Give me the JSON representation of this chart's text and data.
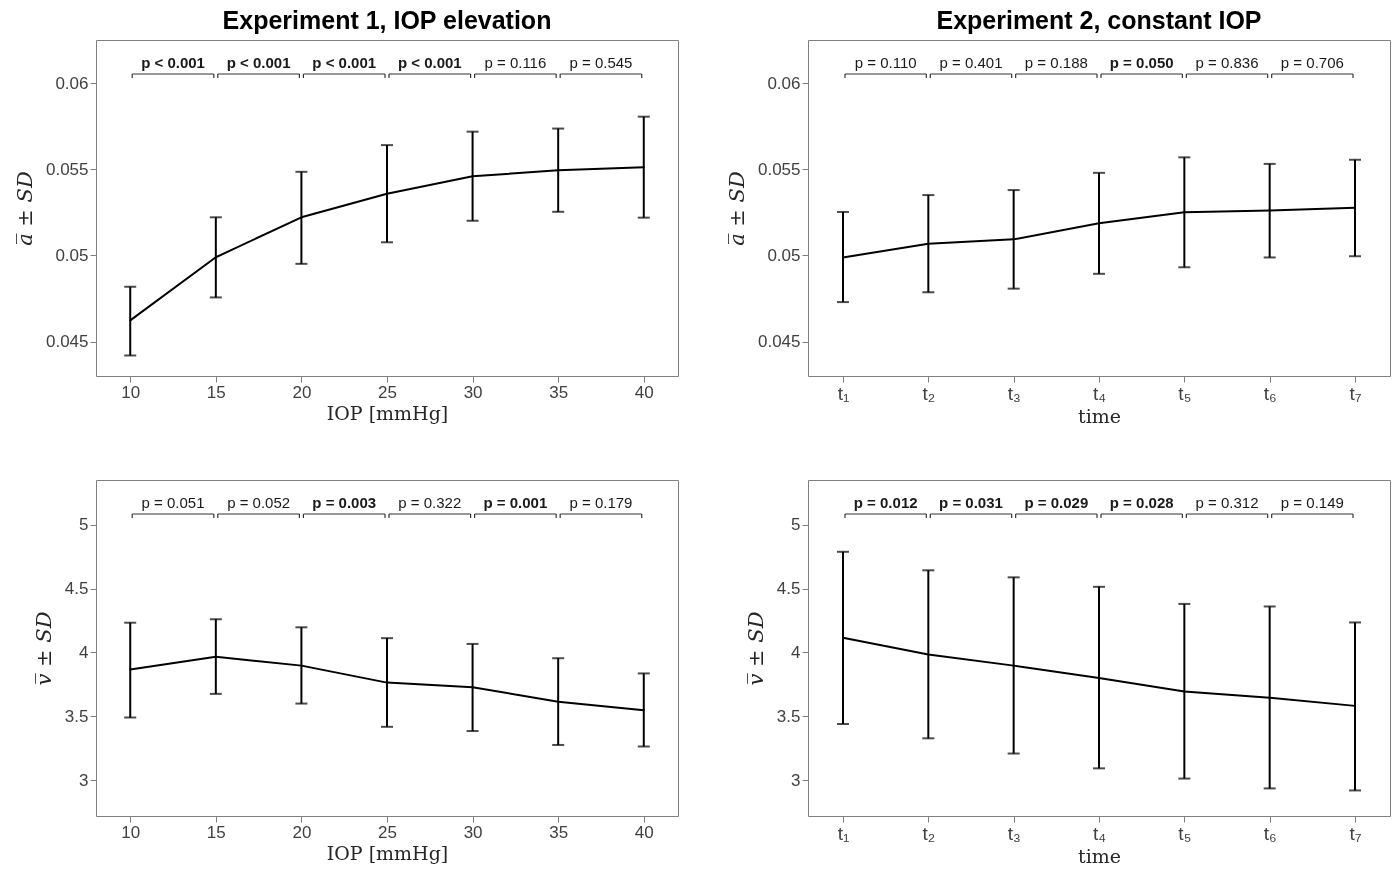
{
  "chart_data": [
    {
      "type": "line",
      "title": "Experiment 1, IOP elevation",
      "xlabel": "IOP [mmHg]",
      "ylabel": "a̅ ± SD",
      "x": [
        10,
        15,
        20,
        25,
        30,
        35,
        40
      ],
      "xlim": [
        8,
        42
      ],
      "xticks": [
        10,
        15,
        20,
        25,
        30,
        35,
        40
      ],
      "ylim": [
        0.043,
        0.0625
      ],
      "yticks": [
        0.045,
        0.05,
        0.055,
        0.06
      ],
      "color": "#000000",
      "values": [
        0.04623,
        0.04989,
        0.05221,
        0.05358,
        0.05459,
        0.05494,
        0.05512
      ],
      "errors": [
        [
          0.04419,
          0.04818
        ],
        [
          0.04756,
          0.05221
        ],
        [
          0.04951,
          0.05485
        ],
        [
          0.05076,
          0.0564
        ],
        [
          0.05201,
          0.05718
        ],
        [
          0.05253,
          0.05736
        ],
        [
          0.05219,
          0.05805
        ]
      ],
      "annotations": [
        "p < 0.001",
        "p < 0.001",
        "p < 0.001",
        "p < 0.001",
        "p = 0.116",
        "p = 0.545"
      ]
    },
    {
      "type": "line",
      "title": "Experiment 2, constant IOP",
      "xlabel": "time",
      "ylabel": "a̅ ± SD",
      "categories": [
        "t₁",
        "t₂",
        "t₃",
        "t₄",
        "t₅",
        "t₆",
        "t₇"
      ],
      "ylim": [
        0.043,
        0.0625
      ],
      "yticks": [
        0.045,
        0.05,
        0.055,
        0.06
      ],
      "color": "#000000",
      "values": [
        0.04988,
        0.05067,
        0.05093,
        0.05186,
        0.0525,
        0.0526,
        0.05276
      ],
      "errors": [
        [
          0.04729,
          0.05252
        ],
        [
          0.04786,
          0.0535
        ],
        [
          0.04807,
          0.05379
        ],
        [
          0.04893,
          0.05479
        ],
        [
          0.04931,
          0.05569
        ],
        [
          0.04988,
          0.05531
        ],
        [
          0.04995,
          0.05555
        ]
      ],
      "annotations": [
        "p = 0.110",
        "p = 0.401",
        "p = 0.188",
        "p = 0.050",
        "p = 0.836",
        "p = 0.706"
      ]
    },
    {
      "type": "line",
      "xlabel": "IOP [mmHg]",
      "ylabel": "v̅ ± SD",
      "x": [
        10,
        15,
        20,
        25,
        30,
        35,
        40
      ],
      "xlim": [
        8,
        42
      ],
      "xticks": [
        10,
        15,
        20,
        25,
        30,
        35,
        40
      ],
      "ylim": [
        2.72,
        5.35
      ],
      "yticks": [
        3,
        3.5,
        4,
        4.5,
        5
      ],
      "color": "#000000",
      "values": [
        3.867,
        3.967,
        3.897,
        3.764,
        3.727,
        3.615,
        3.548
      ],
      "errors": [
        [
          3.491,
          4.233
        ],
        [
          3.676,
          4.26
        ],
        [
          3.6,
          4.197
        ],
        [
          3.418,
          4.112
        ],
        [
          3.385,
          4.067
        ],
        [
          3.276,
          3.955
        ],
        [
          3.264,
          3.836
        ]
      ],
      "annotations": [
        "p = 0.051",
        "p = 0.052",
        "p = 0.003",
        "p = 0.322",
        "p = 0.001",
        "p = 0.179"
      ]
    },
    {
      "type": "line",
      "xlabel": "time",
      "ylabel": "v̅ ± SD",
      "categories": [
        "t₁",
        "t₂",
        "t₃",
        "t₄",
        "t₅",
        "t₆",
        "t₇"
      ],
      "ylim": [
        2.72,
        5.35
      ],
      "yticks": [
        3,
        3.5,
        4,
        4.5,
        5
      ],
      "color": "#000000",
      "values": [
        4.116,
        3.984,
        3.897,
        3.801,
        3.695,
        3.646,
        3.582
      ],
      "errors": [
        [
          3.44,
          4.788
        ],
        [
          3.328,
          4.643
        ],
        [
          3.209,
          4.588
        ],
        [
          3.093,
          4.514
        ],
        [
          3.013,
          4.38
        ],
        [
          2.936,
          4.36
        ],
        [
          2.92,
          4.235
        ]
      ],
      "annotations": [
        "p = 0.012",
        "p = 0.031",
        "p = 0.029",
        "p = 0.028",
        "p = 0.312",
        "p = 0.149"
      ]
    }
  ]
}
